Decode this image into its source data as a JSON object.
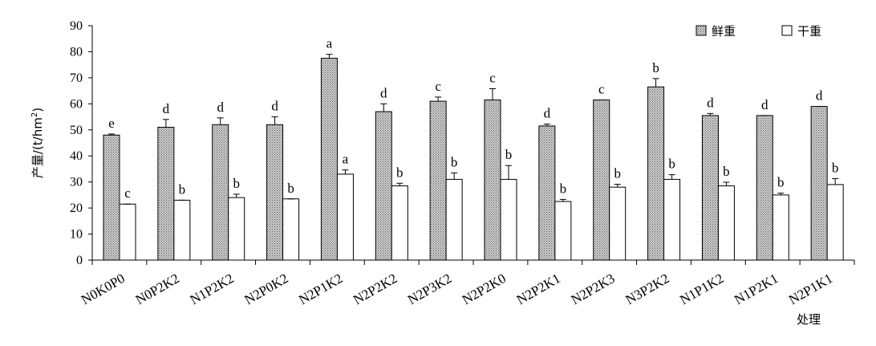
{
  "chart_data": {
    "type": "bar",
    "title": "",
    "xlabel": "处理",
    "ylabel": "产量/(t/hm",
    "ylabel_sup": "2",
    "ylabel_tail": ")",
    "ylim": [
      0,
      90
    ],
    "yticks": [
      0,
      10,
      20,
      30,
      40,
      50,
      60,
      70,
      80,
      90
    ],
    "grid": false,
    "legend_position": "top-right",
    "categories": [
      "N0K0P0",
      "N0P2K2",
      "N1P2K2",
      "N2P0K2",
      "N2P1K2",
      "N2P2K2",
      "N2P3K2",
      "N2P2K0",
      "N2P2K1",
      "N2P2K3",
      "N3P2K2",
      "N1P1K2",
      "N1P2K1",
      "N2P1K1"
    ],
    "series": [
      {
        "name": "鲜重",
        "fill": "hatched-gray",
        "values": [
          48,
          51,
          52,
          52,
          77.5,
          57,
          61,
          61.5,
          51.5,
          61.5,
          66.5,
          55.5,
          55.5,
          59
        ],
        "errors": [
          0.4,
          3,
          2.6,
          3,
          1.5,
          3,
          1.6,
          4.3,
          0.7,
          0,
          3.2,
          0.8,
          0,
          0
        ],
        "labels": [
          "e",
          "d",
          "d",
          "d",
          "a",
          "d",
          "c",
          "c",
          "d",
          "c",
          "b",
          "d",
          "d",
          "d"
        ]
      },
      {
        "name": "干重",
        "fill": "white",
        "values": [
          21.5,
          23,
          24,
          23.5,
          33,
          28.5,
          31,
          31,
          22.5,
          28,
          31,
          28.5,
          25,
          29
        ],
        "errors": [
          0,
          0,
          1.3,
          0,
          1.6,
          1,
          2.5,
          5.3,
          0.8,
          1.1,
          1.8,
          1.4,
          0.7,
          2.3
        ],
        "labels": [
          "c",
          "b",
          "b",
          "b",
          "a",
          "b",
          "b",
          "b",
          "b",
          "b",
          "b",
          "b",
          "b",
          "b"
        ]
      }
    ]
  }
}
